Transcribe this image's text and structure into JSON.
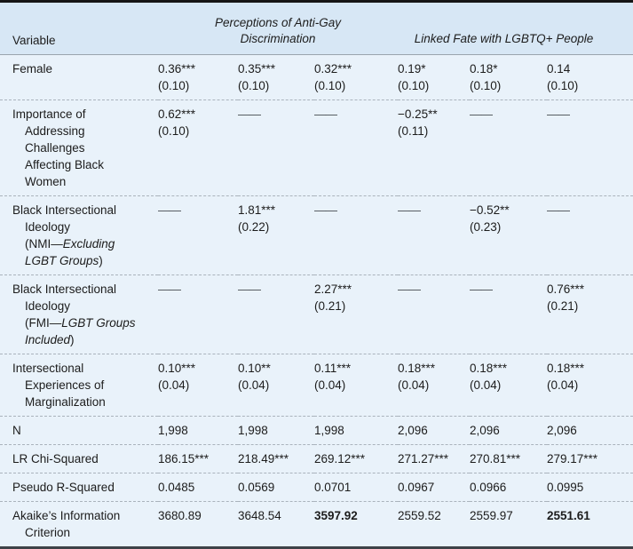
{
  "colors": {
    "header_bg": "#d7e7f5",
    "body_bg": "#e9f2fa",
    "top_rule": "#151515",
    "bottom_rule": "#3d4247",
    "header_rule": "#9aa4ae",
    "row_rule_dashed": "#aab3bc",
    "text": "#1c1c1c"
  },
  "table": {
    "header": {
      "variable": "Variable",
      "group1": "Perceptions of Anti-Gay\nDiscrimination",
      "group2": "Linked Fate with LGBTQ+ People"
    },
    "rows": [
      {
        "name": "female",
        "label_lines": [
          [
            {
              "t": "Female"
            }
          ]
        ],
        "cells": [
          {
            "v": "0.36***",
            "se": "(0.10)"
          },
          {
            "v": "0.35***",
            "se": "(0.10)"
          },
          {
            "v": "0.32***",
            "se": "(0.10)"
          },
          {
            "v": "0.19*",
            "se": "(0.10)"
          },
          {
            "v": "0.18*",
            "se": "(0.10)"
          },
          {
            "v": "0.14",
            "se": "(0.10)"
          }
        ]
      },
      {
        "name": "importance-addressing-challenges",
        "label_lines": [
          [
            {
              "t": "Importance of"
            }
          ],
          [
            {
              "t": "Addressing"
            }
          ],
          [
            {
              "t": "Challenges"
            }
          ],
          [
            {
              "t": "Affecting Black"
            }
          ],
          [
            {
              "t": "Women"
            }
          ]
        ],
        "cells": [
          {
            "v": "0.62***",
            "se": "(0.10)"
          },
          {
            "v": "——"
          },
          {
            "v": "——"
          },
          {
            "v": "−0.25**",
            "se": "(0.11)"
          },
          {
            "v": "——"
          },
          {
            "v": "——"
          }
        ]
      },
      {
        "name": "black-intersectional-ideology-nmi",
        "label_lines": [
          [
            {
              "t": "Black Intersectional"
            }
          ],
          [
            {
              "t": "Ideology"
            }
          ],
          [
            {
              "t": "(NMI—"
            },
            {
              "t": "Excluding",
              "i": true
            }
          ],
          [
            {
              "t": "LGBT Groups",
              "i": true
            },
            {
              "t": ")"
            }
          ]
        ],
        "cells": [
          {
            "v": "——"
          },
          {
            "v": "1.81***",
            "se": "(0.22)"
          },
          {
            "v": "——"
          },
          {
            "v": "——"
          },
          {
            "v": "−0.52**",
            "se": "(0.23)"
          },
          {
            "v": "——"
          }
        ]
      },
      {
        "name": "black-intersectional-ideology-fmi",
        "label_lines": [
          [
            {
              "t": "Black Intersectional"
            }
          ],
          [
            {
              "t": "Ideology"
            }
          ],
          [
            {
              "t": "(FMI—"
            },
            {
              "t": "LGBT Groups",
              "i": true
            }
          ],
          [
            {
              "t": "Included",
              "i": true
            },
            {
              "t": ")"
            }
          ]
        ],
        "cells": [
          {
            "v": "——"
          },
          {
            "v": "——"
          },
          {
            "v": "2.27***",
            "se": "(0.21)"
          },
          {
            "v": "——"
          },
          {
            "v": "——"
          },
          {
            "v": "0.76***",
            "se": "(0.21)"
          }
        ]
      },
      {
        "name": "intersectional-experiences",
        "label_lines": [
          [
            {
              "t": "Intersectional"
            }
          ],
          [
            {
              "t": "Experiences of"
            }
          ],
          [
            {
              "t": "Marginalization"
            }
          ]
        ],
        "cells": [
          {
            "v": "0.10***",
            "se": "(0.04)"
          },
          {
            "v": "0.10**",
            "se": "(0.04)"
          },
          {
            "v": "0.11***",
            "se": "(0.04)"
          },
          {
            "v": "0.18***",
            "se": "(0.04)"
          },
          {
            "v": "0.18***",
            "se": "(0.04)"
          },
          {
            "v": "0.18***",
            "se": "(0.04)"
          }
        ]
      },
      {
        "name": "n",
        "label_lines": [
          [
            {
              "t": "N"
            }
          ]
        ],
        "cells": [
          {
            "v": "1,998"
          },
          {
            "v": "1,998"
          },
          {
            "v": "1,998"
          },
          {
            "v": "2,096"
          },
          {
            "v": "2,096"
          },
          {
            "v": "2,096"
          }
        ]
      },
      {
        "name": "lr-chi-squared",
        "label_lines": [
          [
            {
              "t": "LR Chi-Squared"
            }
          ]
        ],
        "cells": [
          {
            "v": "186.15***"
          },
          {
            "v": "218.49***"
          },
          {
            "v": "269.12***"
          },
          {
            "v": "271.27***"
          },
          {
            "v": "270.81***"
          },
          {
            "v": "279.17***"
          }
        ]
      },
      {
        "name": "pseudo-r-squared",
        "label_lines": [
          [
            {
              "t": "Pseudo R-Squared"
            }
          ]
        ],
        "cells": [
          {
            "v": "0.0485"
          },
          {
            "v": "0.0569"
          },
          {
            "v": "0.0701"
          },
          {
            "v": "0.0967"
          },
          {
            "v": "0.0966"
          },
          {
            "v": "0.0995"
          }
        ]
      },
      {
        "name": "akaikes-information-criterion",
        "label_lines": [
          [
            {
              "t": "Akaike’s Information"
            }
          ],
          [
            {
              "t": "Criterion"
            }
          ]
        ],
        "cells": [
          {
            "v": "3680.89"
          },
          {
            "v": "3648.54"
          },
          {
            "v": "3597.92",
            "bold": true
          },
          {
            "v": "2559.52"
          },
          {
            "v": "2559.97"
          },
          {
            "v": "2551.61",
            "bold": true
          }
        ]
      }
    ]
  }
}
